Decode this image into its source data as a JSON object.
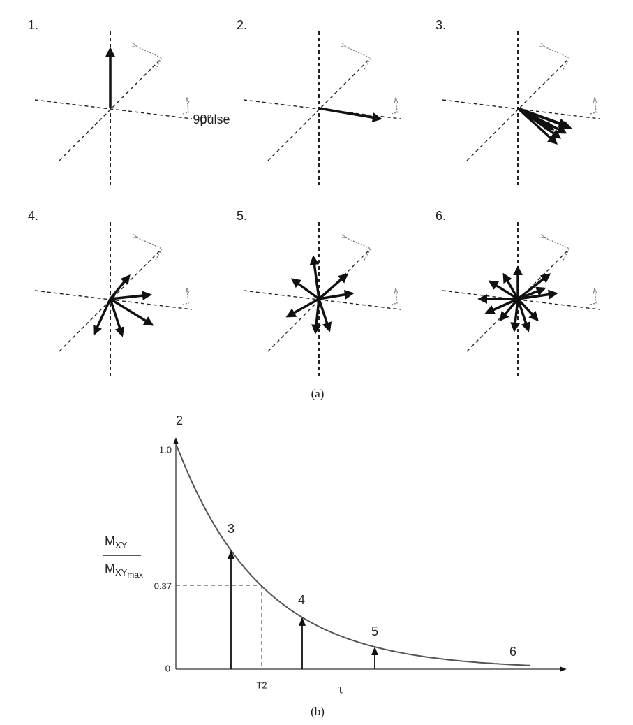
{
  "panel_a": {
    "label": "(a)",
    "steps": [
      "1.",
      "2.",
      "3.",
      "4.",
      "5.",
      "6."
    ],
    "pulse": {
      "angle": "90°",
      "text": "pulse"
    }
  },
  "panel_b": {
    "label": "(b)",
    "y_axis": {
      "numerator": {
        "main": "M",
        "sub": "XY"
      },
      "denominator": {
        "main": "M",
        "sub": "XY",
        "subsub": "max"
      },
      "ticks": [
        "1.0",
        "0.37",
        "0"
      ]
    },
    "x_axis": {
      "symbol": "τ",
      "marker": "T2"
    },
    "curve_points": [
      "2",
      "3",
      "4",
      "5",
      "6"
    ]
  }
}
